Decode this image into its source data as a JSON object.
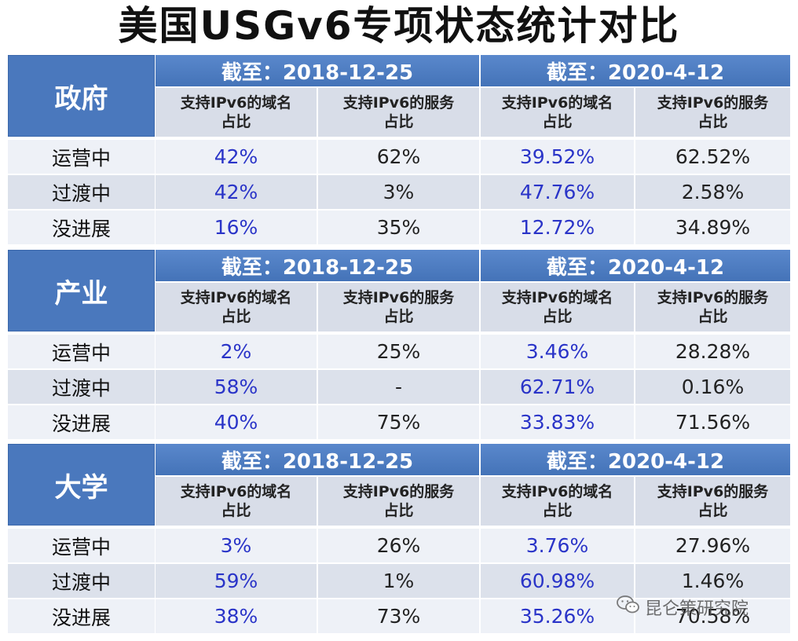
{
  "title": "美国USGv6专项状态统计对比",
  "date_headers": [
    "截至：2018-12-25",
    "截至：2020-4-12"
  ],
  "sub_headers": [
    "支持IPv6的域名\n占比",
    "支持IPv6的服务\n占比",
    "支持IPv6的域名\n占比",
    "支持IPv6的服务\n占比"
  ],
  "sections": [
    {
      "category": "政府",
      "rows": [
        {
          "label": "运营中",
          "values": [
            "42%",
            "62%",
            "39.52%",
            "62.52%"
          ]
        },
        {
          "label": "过渡中",
          "values": [
            "42%",
            "3%",
            "47.76%",
            "2.58%"
          ]
        },
        {
          "label": "没进展",
          "values": [
            "16%",
            "35%",
            "12.72%",
            "34.89%"
          ]
        }
      ]
    },
    {
      "category": "产业",
      "rows": [
        {
          "label": "运营中",
          "values": [
            "2%",
            "25%",
            "3.46%",
            "28.28%"
          ]
        },
        {
          "label": "过渡中",
          "values": [
            "58%",
            "-",
            "62.71%",
            "0.16%"
          ]
        },
        {
          "label": "没进展",
          "values": [
            "40%",
            "75%",
            "33.83%",
            "71.56%"
          ]
        }
      ]
    },
    {
      "category": "大学",
      "rows": [
        {
          "label": "运营中",
          "values": [
            "3%",
            "26%",
            "3.76%",
            "27.96%"
          ]
        },
        {
          "label": "过渡中",
          "values": [
            "59%",
            "1%",
            "60.98%",
            "1.46%"
          ]
        },
        {
          "label": "没进展",
          "values": [
            "38%",
            "73%",
            "35.26%",
            "70.58%"
          ]
        }
      ]
    }
  ],
  "watermark": "昆仑策研究院",
  "colors": {
    "header_blue": "#4a78bd",
    "value_blue": "#2a34c8"
  }
}
